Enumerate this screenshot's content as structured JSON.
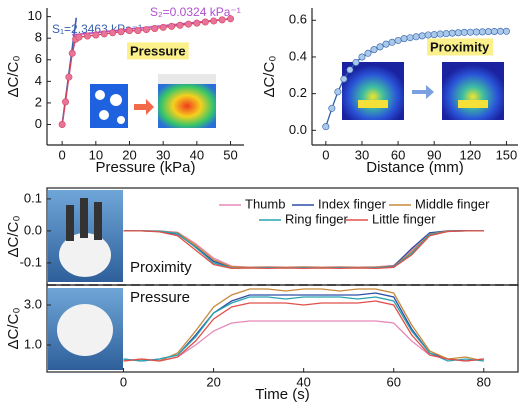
{
  "chart_data": [
    {
      "type": "line",
      "markers": true,
      "xlabel": "Pressure (kPa)",
      "ylabel": "ΔC/C₀",
      "xlim": [
        -4.5,
        54
      ],
      "ylim": [
        -1.9,
        10.8
      ],
      "xticks": [
        0,
        10,
        20,
        30,
        40,
        50
      ],
      "yticks": [
        0,
        2,
        4,
        6,
        8,
        10
      ],
      "x": [
        0,
        1,
        2,
        3,
        4,
        5,
        7.5,
        10,
        12.5,
        15,
        17.5,
        20,
        22.5,
        25,
        27.5,
        30,
        32.5,
        35,
        37.5,
        40,
        42.5,
        45,
        47.5,
        50
      ],
      "values": [
        0,
        2.1,
        4.4,
        6.6,
        7.9,
        8.1,
        8.2,
        8.3,
        8.4,
        8.5,
        8.6,
        8.7,
        8.7,
        8.8,
        8.9,
        9.0,
        9.1,
        9.2,
        9.3,
        9.4,
        9.5,
        9.6,
        9.7,
        9.8
      ],
      "color": "#e8749a",
      "line_color": "#d9435f",
      "fits": [
        {
          "label": "S₁=2.3463 kPa⁻¹",
          "color": "#3a5fb0",
          "x": [
            0,
            4.2
          ],
          "values": [
            0,
            9.9
          ]
        },
        {
          "label": "S₂=0.0324 kPa⁻¹",
          "color": "#b04fd0",
          "x": [
            3,
            50
          ],
          "values": [
            8.3,
            9.8
          ]
        }
      ],
      "annotation": "Pressure"
    },
    {
      "type": "line",
      "markers": true,
      "xlabel": "Distance (mm)",
      "ylabel": "ΔC/C₀",
      "xlim": [
        -11.5,
        159.6
      ],
      "ylim": [
        -0.08,
        0.667
      ],
      "xticks": [
        0,
        30,
        60,
        90,
        120,
        150
      ],
      "yticks": [
        {
          "value": 0,
          "label": "0.0"
        },
        0.2,
        0.4,
        0.6
      ],
      "x": [
        0,
        5,
        10,
        15,
        20,
        25,
        30,
        35,
        40,
        45,
        50,
        55,
        60,
        65,
        70,
        75,
        80,
        85,
        90,
        95,
        100,
        105,
        110,
        115,
        120,
        125,
        130,
        135,
        140,
        145,
        150
      ],
      "values": [
        0.02,
        0.12,
        0.21,
        0.28,
        0.33,
        0.37,
        0.4,
        0.42,
        0.44,
        0.455,
        0.47,
        0.48,
        0.49,
        0.5,
        0.505,
        0.51,
        0.515,
        0.52,
        0.522,
        0.525,
        0.527,
        0.53,
        0.532,
        0.534,
        0.535,
        0.536,
        0.537,
        0.538,
        0.539,
        0.54,
        0.54
      ],
      "color": "#a9c8ea",
      "line_color": "#2e5fa8",
      "annotation": "Proximity"
    },
    {
      "type": "line",
      "ylabel": "ΔC/C₀",
      "xlim": [
        -17,
        87.6
      ],
      "ylim": [
        -0.169,
        0.134
      ],
      "yticks": [
        0.1,
        {
          "value": 0,
          "label": "0.0"
        },
        -0.1
      ],
      "x": [
        0,
        4,
        8,
        12,
        16,
        20,
        24,
        28,
        32,
        36,
        40,
        44,
        48,
        52,
        56,
        60,
        64,
        68,
        72,
        76,
        80
      ],
      "series": [
        {
          "name": "Thumb",
          "color": "#e889b8",
          "values": [
            0,
            0,
            0,
            -0.004,
            -0.04,
            -0.085,
            -0.11,
            -0.113,
            -0.112,
            -0.113,
            -0.112,
            -0.113,
            -0.112,
            -0.113,
            -0.112,
            -0.108,
            -0.06,
            -0.008,
            0,
            0,
            0
          ]
        },
        {
          "name": "Index finger",
          "color": "#2e4fa8",
          "values": [
            0,
            0,
            -0.002,
            -0.01,
            -0.05,
            -0.095,
            -0.114,
            -0.115,
            -0.114,
            -0.115,
            -0.114,
            -0.115,
            -0.114,
            -0.115,
            -0.114,
            -0.11,
            -0.055,
            -0.006,
            0,
            0.001,
            0
          ]
        },
        {
          "name": "Middle finger",
          "color": "#c8893a",
          "values": [
            0,
            0,
            -0.001,
            -0.006,
            -0.045,
            -0.09,
            -0.112,
            -0.114,
            -0.113,
            -0.114,
            -0.113,
            -0.114,
            -0.113,
            -0.114,
            -0.113,
            -0.112,
            -0.065,
            -0.01,
            -0.001,
            0,
            0
          ]
        },
        {
          "name": "Ring finger",
          "color": "#2aa3b0",
          "values": [
            0,
            0,
            -0.001,
            -0.008,
            -0.052,
            -0.1,
            -0.116,
            -0.116,
            -0.115,
            -0.116,
            -0.115,
            -0.116,
            -0.115,
            -0.116,
            -0.115,
            -0.113,
            -0.07,
            -0.012,
            -0.002,
            0,
            0
          ]
        },
        {
          "name": "Little finger",
          "color": "#e0504a",
          "values": [
            0,
            0,
            -0.003,
            -0.015,
            -0.06,
            -0.105,
            -0.117,
            -0.116,
            -0.117,
            -0.116,
            -0.117,
            -0.116,
            -0.117,
            -0.116,
            -0.117,
            -0.114,
            -0.075,
            -0.015,
            -0.002,
            0,
            0
          ]
        }
      ],
      "annotation": "Proximity"
    },
    {
      "type": "line",
      "xlabel": "Time (s)",
      "ylabel": "ΔC/C₀",
      "xlim": [
        -17,
        87.6
      ],
      "ylim": [
        -0.35,
        4.0
      ],
      "xticks": [
        0,
        20,
        40,
        60,
        80
      ],
      "yticks": [
        {
          "value": 3,
          "label": "3.0"
        },
        {
          "value": 1,
          "label": "1.0"
        }
      ],
      "x": [
        0,
        4,
        8,
        12,
        16,
        20,
        24,
        28,
        32,
        36,
        40,
        44,
        48,
        52,
        56,
        60,
        64,
        68,
        72,
        76,
        80
      ],
      "series": [
        {
          "color": "#e889b8",
          "values": [
            0.2,
            0.3,
            0.2,
            0.4,
            1.0,
            1.7,
            2.1,
            2.2,
            2.2,
            2.2,
            2.2,
            2.2,
            2.2,
            2.2,
            2.2,
            2.1,
            1.2,
            0.5,
            0.3,
            0.2,
            0.3
          ]
        },
        {
          "color": "#2e4fa8",
          "values": [
            0.3,
            0.2,
            0.3,
            0.5,
            1.5,
            2.6,
            3.2,
            3.5,
            3.5,
            3.5,
            3.5,
            3.5,
            3.5,
            3.5,
            3.6,
            3.4,
            1.8,
            0.6,
            0.3,
            0.2,
            0.3
          ]
        },
        {
          "color": "#c8893a",
          "values": [
            0.2,
            0.3,
            0.2,
            0.6,
            1.7,
            2.9,
            3.5,
            3.8,
            3.8,
            3.7,
            3.8,
            3.8,
            3.7,
            3.8,
            3.8,
            3.6,
            2.0,
            0.7,
            0.3,
            0.4,
            0.2
          ]
        },
        {
          "color": "#2aa3b0",
          "values": [
            0.3,
            0.2,
            0.3,
            0.5,
            1.4,
            2.6,
            3.1,
            3.4,
            3.4,
            3.3,
            3.4,
            3.4,
            3.4,
            3.3,
            3.4,
            3.2,
            1.7,
            0.6,
            0.2,
            0.3,
            0.2
          ]
        },
        {
          "color": "#e0504a",
          "values": [
            0.2,
            0.3,
            0.2,
            0.4,
            1.2,
            2.3,
            2.9,
            3.1,
            3.1,
            3.1,
            3.0,
            3.1,
            3.1,
            3.1,
            3.2,
            3.0,
            1.5,
            0.5,
            0.3,
            0.2,
            0.3
          ]
        }
      ],
      "annotation": "Pressure"
    }
  ]
}
